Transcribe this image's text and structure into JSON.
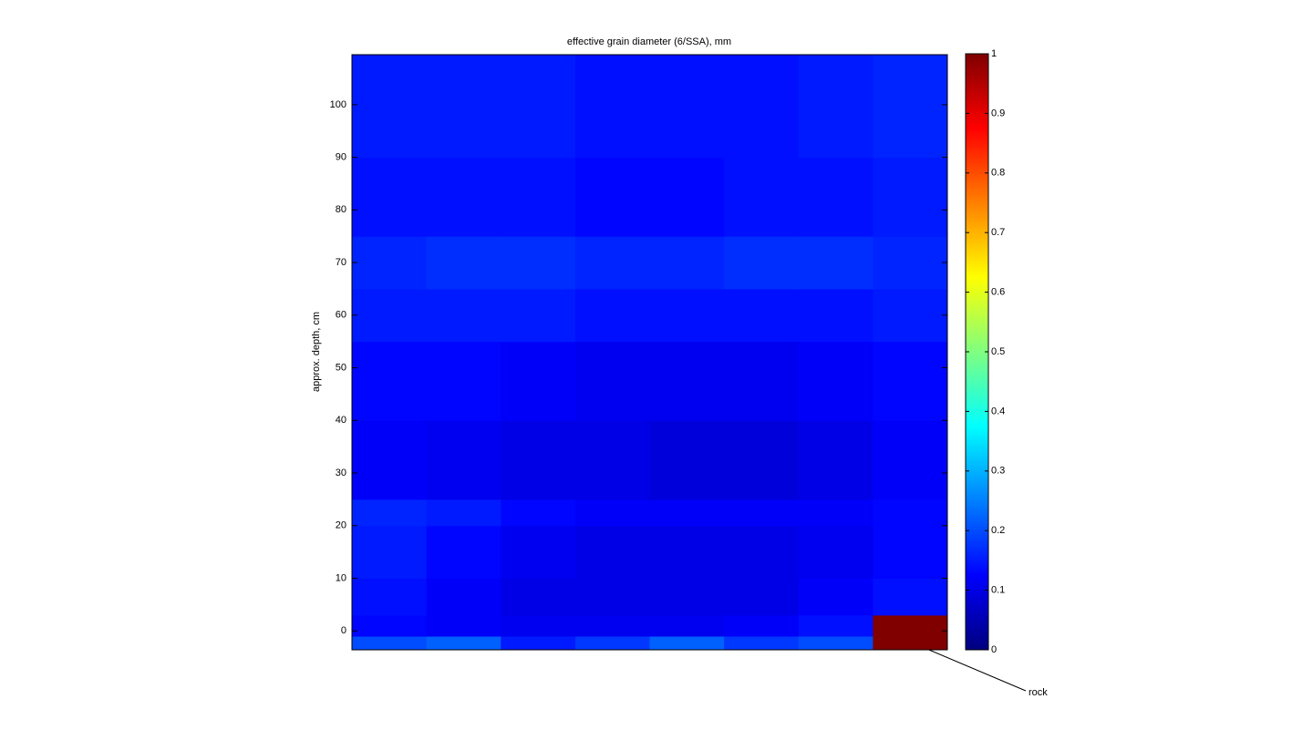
{
  "chart_data": {
    "type": "heatmap",
    "title": "effective grain diameter (6/SSA), mm",
    "ylabel": "approx. depth, cm",
    "colormap": "jet",
    "ylim": [
      -3.6,
      109.5
    ],
    "yticks": [
      0,
      10,
      20,
      30,
      40,
      50,
      60,
      70,
      80,
      90,
      100
    ],
    "ybins": [
      -3.6,
      -1,
      3,
      10,
      20,
      25,
      40,
      55,
      65,
      75,
      90,
      109.5
    ],
    "z": [
      [
        0.2,
        0.22,
        0.15,
        0.18,
        0.22,
        0.18,
        0.2,
        1
      ],
      [
        0.13,
        0.12,
        0.11,
        0.11,
        0.11,
        0.12,
        0.14,
        1
      ],
      [
        0.14,
        0.12,
        0.1,
        0.1,
        0.1,
        0.1,
        0.12,
        0.14
      ],
      [
        0.15,
        0.13,
        0.11,
        0.1,
        0.1,
        0.1,
        0.11,
        0.13
      ],
      [
        0.16,
        0.15,
        0.13,
        0.12,
        0.12,
        0.12,
        0.12,
        0.13
      ],
      [
        0.12,
        0.11,
        0.1,
        0.1,
        0.09,
        0.09,
        0.1,
        0.12
      ],
      [
        0.13,
        0.13,
        0.12,
        0.11,
        0.11,
        0.11,
        0.12,
        0.13
      ],
      [
        0.15,
        0.15,
        0.15,
        0.14,
        0.14,
        0.14,
        0.14,
        0.15
      ],
      [
        0.16,
        0.17,
        0.17,
        0.16,
        0.16,
        0.17,
        0.17,
        0.16
      ],
      [
        0.14,
        0.14,
        0.14,
        0.13,
        0.13,
        0.14,
        0.14,
        0.15
      ],
      [
        0.15,
        0.15,
        0.15,
        0.14,
        0.14,
        0.14,
        0.15,
        0.16
      ]
    ],
    "clim": [
      0,
      1
    ],
    "cticks": [
      0,
      0.1,
      0.2,
      0.3,
      0.4,
      0.5,
      0.6,
      0.7,
      0.8,
      0.9,
      1
    ],
    "annotations": [
      {
        "text": "rock"
      }
    ]
  }
}
